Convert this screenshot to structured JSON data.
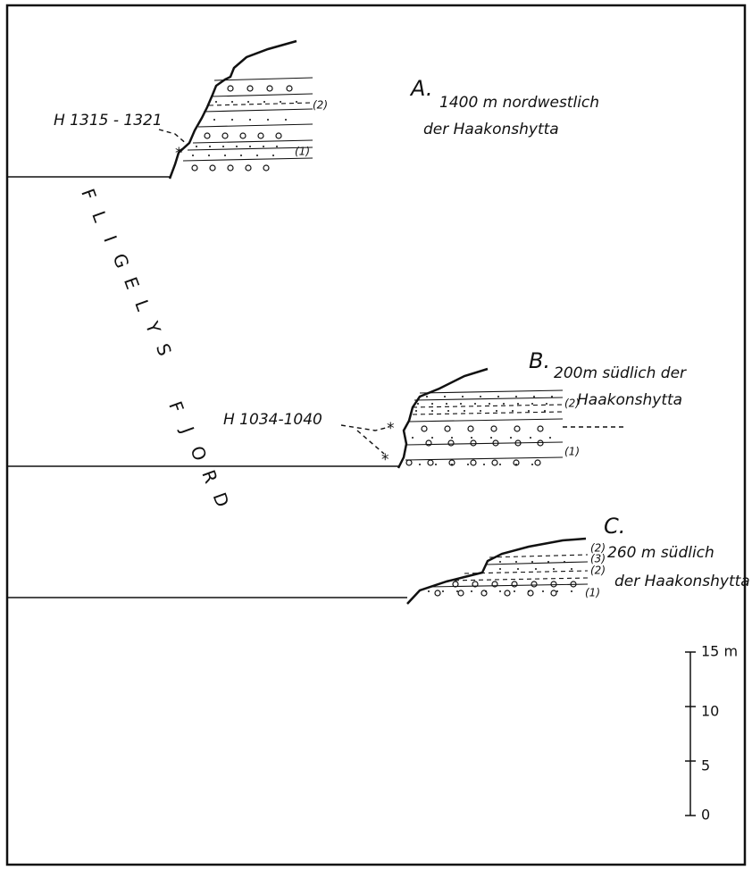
{
  "sections": [
    {
      "label": "A.",
      "caption": [
        "1400 m nordwestlich",
        "der Haakonshytta"
      ],
      "sample": "H 1315 - 1321",
      "beds": [
        "(2)",
        "(1)"
      ]
    },
    {
      "label": "B.",
      "caption": [
        "200m südlich der",
        "Haakonshytta"
      ],
      "sample": "H 1034-1040",
      "beds": [
        "(2)",
        "(1)"
      ]
    },
    {
      "label": "C.",
      "caption": [
        "260 m südlich",
        "der Haakonshytta"
      ],
      "beds": [
        "(2)",
        "(3)",
        "(2)",
        "(1)"
      ]
    }
  ],
  "fjord_name": {
    "line1": [
      "F",
      "L",
      "I",
      "G",
      "E",
      "L",
      "Y",
      "S"
    ],
    "line2": [
      "F",
      "J",
      "O",
      "R",
      "D"
    ]
  },
  "scale": {
    "labels": [
      "15 m",
      "10",
      "5",
      "0"
    ]
  }
}
